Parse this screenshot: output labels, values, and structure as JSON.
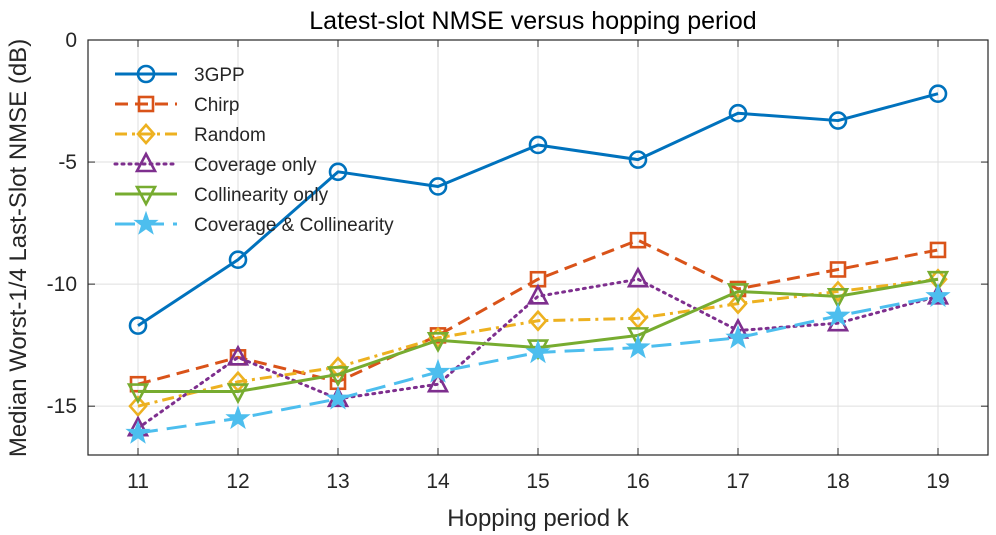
{
  "chart_data": {
    "type": "line",
    "title": "Latest-slot NMSE versus hopping period",
    "xlabel": "Hopping period k",
    "ylabel": "Median Worst-1/4 Last-Slot NMSE (dB)",
    "x": [
      11,
      12,
      13,
      14,
      15,
      16,
      17,
      18,
      19
    ],
    "xlim": [
      10.5,
      19.5
    ],
    "ylim": [
      -17,
      0
    ],
    "xticks": [
      "11",
      "12",
      "13",
      "14",
      "15",
      "16",
      "17",
      "18",
      "19"
    ],
    "yticks": [
      {
        "value": 0,
        "label": "0"
      },
      {
        "value": -5,
        "label": "-5"
      },
      {
        "value": -10,
        "label": "-10"
      },
      {
        "value": -15,
        "label": "-15"
      }
    ],
    "grid": true,
    "legend_position": "top-left",
    "series": [
      {
        "name": "3GPP",
        "color": "#0072BD",
        "dash": "solid",
        "marker": "circle",
        "values": [
          -11.7,
          -9.0,
          -5.4,
          -6.0,
          -4.3,
          -4.9,
          -3.0,
          -3.3,
          -2.2
        ]
      },
      {
        "name": "Chirp",
        "color": "#D95319",
        "dash": "dashed",
        "marker": "square",
        "values": [
          -14.1,
          -13.0,
          -14.0,
          -12.1,
          -9.8,
          -8.2,
          -10.2,
          -9.4,
          -8.6
        ]
      },
      {
        "name": "Random",
        "color": "#EDB120",
        "dash": "dashdot",
        "marker": "diamond",
        "values": [
          -15.0,
          -14.0,
          -13.4,
          -12.2,
          -11.5,
          -11.4,
          -10.8,
          -10.3,
          -9.8
        ]
      },
      {
        "name": "Coverage only",
        "color": "#7E2F8E",
        "dash": "dotted",
        "marker": "triangle-up",
        "values": [
          -15.9,
          -13.0,
          -14.7,
          -14.1,
          -10.5,
          -9.8,
          -11.9,
          -11.6,
          -10.5
        ]
      },
      {
        "name": "Collinearity only",
        "color": "#77AC30",
        "dash": "solid",
        "marker": "triangle-down",
        "values": [
          -14.4,
          -14.4,
          -13.7,
          -12.3,
          -12.6,
          -12.1,
          -10.3,
          -10.5,
          -9.8
        ]
      },
      {
        "name": "Coverage & Collinearity",
        "color": "#4DBEEE",
        "dash": "longdash",
        "marker": "star",
        "values": [
          -16.1,
          -15.5,
          -14.7,
          -13.6,
          -12.8,
          -12.6,
          -12.2,
          -11.3,
          -10.5
        ]
      }
    ]
  }
}
